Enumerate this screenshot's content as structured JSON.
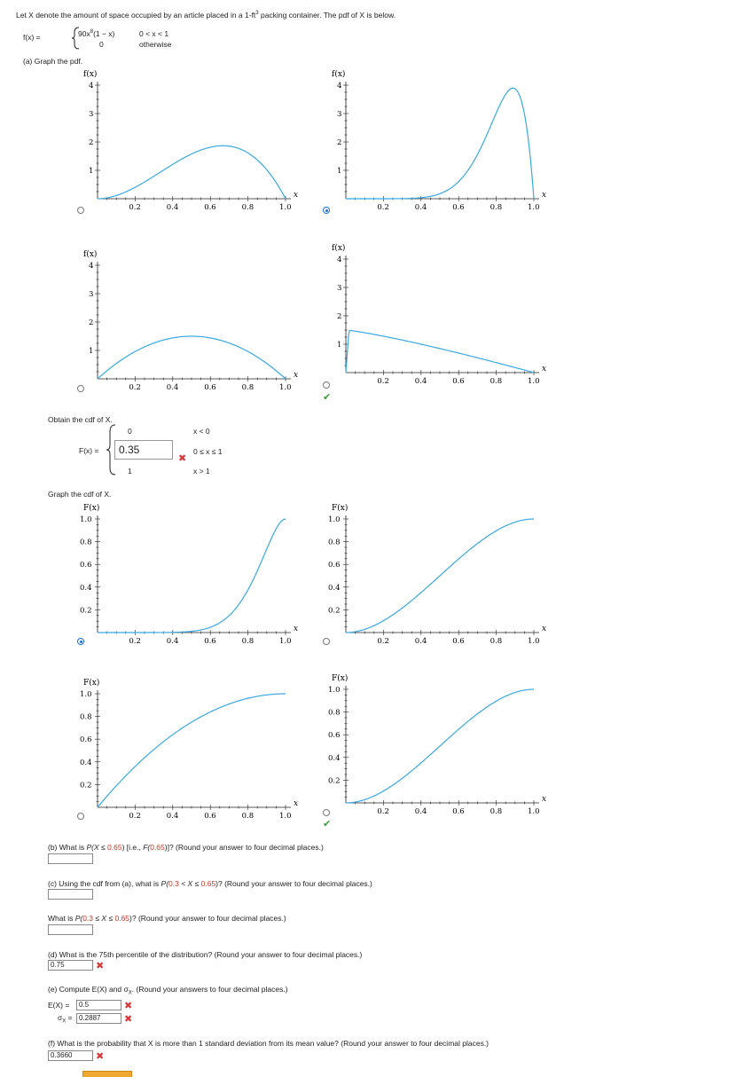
{
  "intro": {
    "text_before": "Let X denote the amount of space occupied by an article placed in a 1-ft",
    "sup": "3",
    "text_after": " packing container. The pdf of X is below."
  },
  "pdf_def": {
    "lhs": "f(x) =",
    "row1_expr": "90x",
    "row1_sup": "8",
    "row1_rest": "(1 − x)",
    "row1_cond": "0 < x < 1",
    "row2_expr": "0",
    "row2_cond": "otherwise"
  },
  "part_a": {
    "label": "(a) Graph the pdf."
  },
  "graph_labels": {
    "pdf_y": "f(x)",
    "cdf_y": "F(x)",
    "x": "x",
    "pdf_yticks": [
      "1",
      "2",
      "3",
      "4"
    ],
    "cdf_yticks": [
      "0.2",
      "0.4",
      "0.6",
      "0.8",
      "1.0"
    ],
    "xticks": [
      "0.2",
      "0.4",
      "0.6",
      "0.8",
      "1.0"
    ]
  },
  "pdf_options": [
    {
      "id": "pdf-a",
      "selected": false,
      "correct": false
    },
    {
      "id": "pdf-b",
      "selected": true,
      "correct": false
    },
    {
      "id": "pdf-c",
      "selected": false,
      "correct": false
    },
    {
      "id": "pdf-d",
      "selected": false,
      "correct": true
    }
  ],
  "cdf_section": {
    "label": "Obtain the cdf of X.",
    "lhs": "F(x) =",
    "row1_val": "0",
    "row1_cond": "x < 0",
    "row2_input": "0.35",
    "row2_cond": "0 ≤ x ≤ 1",
    "row3_val": "1",
    "row3_cond": "x > 1"
  },
  "cdf_graph_label": "Graph the cdf of X.",
  "cdf_options": [
    {
      "id": "cdf-a",
      "selected": true,
      "correct": false
    },
    {
      "id": "cdf-b",
      "selected": false,
      "correct": false
    },
    {
      "id": "cdf-c",
      "selected": false,
      "correct": false
    },
    {
      "id": "cdf-d",
      "selected": false,
      "correct": true
    }
  ],
  "part_b": {
    "prefix": "(b) What is ",
    "expr_pre": "P(X ≤ ",
    "val": "0.65",
    "expr_mid": ") [i.e., ",
    "expr_f": "F(",
    "val2": "0.65",
    "expr_post": ")]? (Round your answer to four decimal places.)",
    "answer": ""
  },
  "part_c": {
    "prefix": "(c) Using the cdf from (a), what is ",
    "p_open": "P(",
    "lo": "0.3",
    "mid": " < X ≤ ",
    "hi": "0.65",
    "suffix": ")? (Round your answer to four decimal places.)",
    "answer": ""
  },
  "part_c2": {
    "prefix": "What is ",
    "p_open": "P(",
    "lo": "0.3",
    "mid": " ≤ X ≤ ",
    "hi": "0.65",
    "suffix": ")? (Round your answer to four decimal places.)",
    "answer": ""
  },
  "part_d": {
    "text": "(d) What is the 75th percentile of the distribution? (Round your answer to four decimal places.)",
    "answer": "0.75"
  },
  "part_e": {
    "text_pre": "(e) Compute E(X) and σ",
    "text_sub": "X",
    "text_post": ". (Round your answers to four decimal places.)",
    "ex_label": "E(X) =",
    "ex_answer": "0.5",
    "sd_label_pre": "σ",
    "sd_label_sub": "X",
    "sd_label_post": " =",
    "sd_answer": "0.2887"
  },
  "part_f": {
    "text": "(f) What is the probability that X is more than 1 standard deviation from its mean value? (Round your answer to four decimal places.)",
    "answer": "0.3660"
  },
  "colors": {
    "curve": "#3ba8e0",
    "axis": "#222",
    "accent_red": "#c0392b",
    "check": "#3aa03a",
    "wrong": "#d9383a",
    "radio_sel": "#1a6ecf"
  }
}
